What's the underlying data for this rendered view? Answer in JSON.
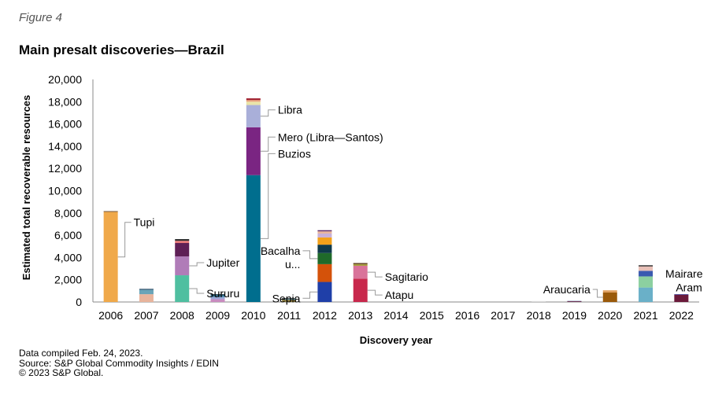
{
  "figure_label": "Figure 4",
  "title": "Main presalt discoveries—Brazil",
  "footer": {
    "line1": "Data compiled Feb. 24, 2023.",
    "line2": "Source: S&P Global Commodity Insights / EDIN",
    "line3": "© 2023 S&P Global."
  },
  "chart_data": {
    "type": "bar",
    "stacked": true,
    "title": "Main presalt discoveries—Brazil",
    "xlabel": "Discovery year",
    "ylabel": "Estimated total recoverable resources",
    "ylim": [
      0,
      20000
    ],
    "yticks": [
      0,
      2000,
      4000,
      6000,
      8000,
      10000,
      12000,
      14000,
      16000,
      18000,
      20000
    ],
    "ytick_labels": [
      "0",
      "2,000",
      "4,000",
      "6,000",
      "8,000",
      "10,000",
      "12,000",
      "14,000",
      "16,000",
      "18,000",
      "20,000"
    ],
    "categories": [
      "2006",
      "2007",
      "2008",
      "2009",
      "2010",
      "2011",
      "2012",
      "2013",
      "2014",
      "2015",
      "2016",
      "2017",
      "2018",
      "2019",
      "2020",
      "2021",
      "2022"
    ],
    "bars": [
      {
        "year": "2006",
        "segments": [
          {
            "name": "Tupi",
            "value": 8100,
            "color": "#f0a94a"
          },
          {
            "name": "",
            "value": 60,
            "color": "#5a3a1a"
          }
        ]
      },
      {
        "year": "2007",
        "segments": [
          {
            "name": "",
            "value": 700,
            "color": "#e8b49c"
          },
          {
            "name": "",
            "value": 400,
            "color": "#6aa4b8"
          },
          {
            "name": "",
            "value": 80,
            "color": "#2a4b66"
          }
        ]
      },
      {
        "year": "2008",
        "segments": [
          {
            "name": "Sururu",
            "value": 2400,
            "color": "#4fbfa0"
          },
          {
            "name": "Jupiter",
            "value": 1700,
            "color": "#b07cb8"
          },
          {
            "name": "",
            "value": 1200,
            "color": "#5e1f55"
          },
          {
            "name": "",
            "value": 200,
            "color": "#e87878"
          },
          {
            "name": "",
            "value": 150,
            "color": "#2a2a2a"
          }
        ]
      },
      {
        "year": "2009",
        "segments": [
          {
            "name": "",
            "value": 250,
            "color": "#c98cc0"
          },
          {
            "name": "",
            "value": 200,
            "color": "#9aa8d8"
          },
          {
            "name": "",
            "value": 150,
            "color": "#3a7ea0"
          },
          {
            "name": "",
            "value": 100,
            "color": "#1a3a4a"
          }
        ]
      },
      {
        "year": "2010",
        "segments": [
          {
            "name": "Buzios",
            "value": 11400,
            "color": "#006e8e"
          },
          {
            "name": "Mero (Libra—Santos)",
            "value": 4300,
            "color": "#7a2582"
          },
          {
            "name": "Libra",
            "value": 2000,
            "color": "#a9afd9"
          },
          {
            "name": "",
            "value": 300,
            "color": "#e9e4a8"
          },
          {
            "name": "",
            "value": 150,
            "color": "#e8a07a"
          },
          {
            "name": "",
            "value": 150,
            "color": "#a02030"
          }
        ]
      },
      {
        "year": "2011",
        "segments": [
          {
            "name": "",
            "value": 200,
            "color": "#8c7a3a"
          },
          {
            "name": "",
            "value": 100,
            "color": "#4a7a8a"
          },
          {
            "name": "",
            "value": 50,
            "color": "#2a2a2a"
          }
        ]
      },
      {
        "year": "2012",
        "segments": [
          {
            "name": "Sepia",
            "value": 1800,
            "color": "#1f3fa8"
          },
          {
            "name": "",
            "value": 1600,
            "color": "#d4520a"
          },
          {
            "name": "Bacalhau",
            "value": 1000,
            "color": "#1f6a2a"
          },
          {
            "name": "",
            "value": 750,
            "color": "#0f3a4a"
          },
          {
            "name": "",
            "value": 650,
            "color": "#f3a11a"
          },
          {
            "name": "",
            "value": 350,
            "color": "#c8b0d8"
          },
          {
            "name": "",
            "value": 200,
            "color": "#e8b49c"
          },
          {
            "name": "",
            "value": 100,
            "color": "#5a2a6a"
          }
        ]
      },
      {
        "year": "2013",
        "segments": [
          {
            "name": "Atapu",
            "value": 2100,
            "color": "#c8284c"
          },
          {
            "name": "Sagitario",
            "value": 1150,
            "color": "#d9739a"
          },
          {
            "name": "",
            "value": 150,
            "color": "#a8a040"
          },
          {
            "name": "",
            "value": 100,
            "color": "#5a3a1a"
          }
        ]
      },
      {
        "year": "2014",
        "segments": []
      },
      {
        "year": "2015",
        "segments": []
      },
      {
        "year": "2016",
        "segments": []
      },
      {
        "year": "2017",
        "segments": []
      },
      {
        "year": "2018",
        "segments": [
          {
            "name": "",
            "value": 80,
            "color": "#d8d8d8"
          }
        ]
      },
      {
        "year": "2019",
        "segments": [
          {
            "name": "",
            "value": 60,
            "color": "#7a1a2a"
          },
          {
            "name": "",
            "value": 30,
            "color": "#3a4a8a"
          }
        ]
      },
      {
        "year": "2020",
        "segments": [
          {
            "name": "Araucaria",
            "value": 850,
            "color": "#9a5a0a"
          },
          {
            "name": "",
            "value": 200,
            "color": "#e0a060"
          }
        ]
      },
      {
        "year": "2021",
        "segments": [
          {
            "name": "",
            "value": 1300,
            "color": "#6ab0c8"
          },
          {
            "name": "",
            "value": 1000,
            "color": "#8cd0a0"
          },
          {
            "name": "Mairare",
            "value": 500,
            "color": "#3a5ab0"
          },
          {
            "name": "",
            "value": 400,
            "color": "#e8c0b8"
          },
          {
            "name": "",
            "value": 100,
            "color": "#2a2a2a"
          }
        ]
      },
      {
        "year": "2022",
        "segments": [
          {
            "name": "Aram",
            "value": 650,
            "color": "#6a1a3a"
          },
          {
            "name": "",
            "value": 50,
            "color": "#2a2a8a"
          }
        ]
      }
    ],
    "annotations": [
      {
        "year": "2006",
        "label": "Tupi",
        "segment": "Tupi"
      },
      {
        "year": "2008",
        "label": "Jupiter",
        "segment": "Jupiter"
      },
      {
        "year": "2008",
        "label": "Sururu",
        "segment": "Sururu"
      },
      {
        "year": "2010",
        "label": "Libra",
        "segment": "Libra"
      },
      {
        "year": "2010",
        "label": "Mero (Libra—Santos)",
        "segment": "Mero (Libra—Santos)"
      },
      {
        "year": "2010",
        "label": "Buzios",
        "segment": "Buzios"
      },
      {
        "year": "2012",
        "label": "Bacalha\nu...",
        "segment": "Bacalhau"
      },
      {
        "year": "2012",
        "label": "Sepia",
        "segment": "Sepia"
      },
      {
        "year": "2013",
        "label": "Sagitario",
        "segment": "Sagitario"
      },
      {
        "year": "2013",
        "label": "Atapu",
        "segment": "Atapu"
      },
      {
        "year": "2020",
        "label": "Araucaria",
        "segment": "Araucaria"
      },
      {
        "year": "2021",
        "label": "Mairare",
        "segment": "Mairare"
      },
      {
        "year": "2022",
        "label": "Aram",
        "segment": "Aram"
      }
    ]
  }
}
